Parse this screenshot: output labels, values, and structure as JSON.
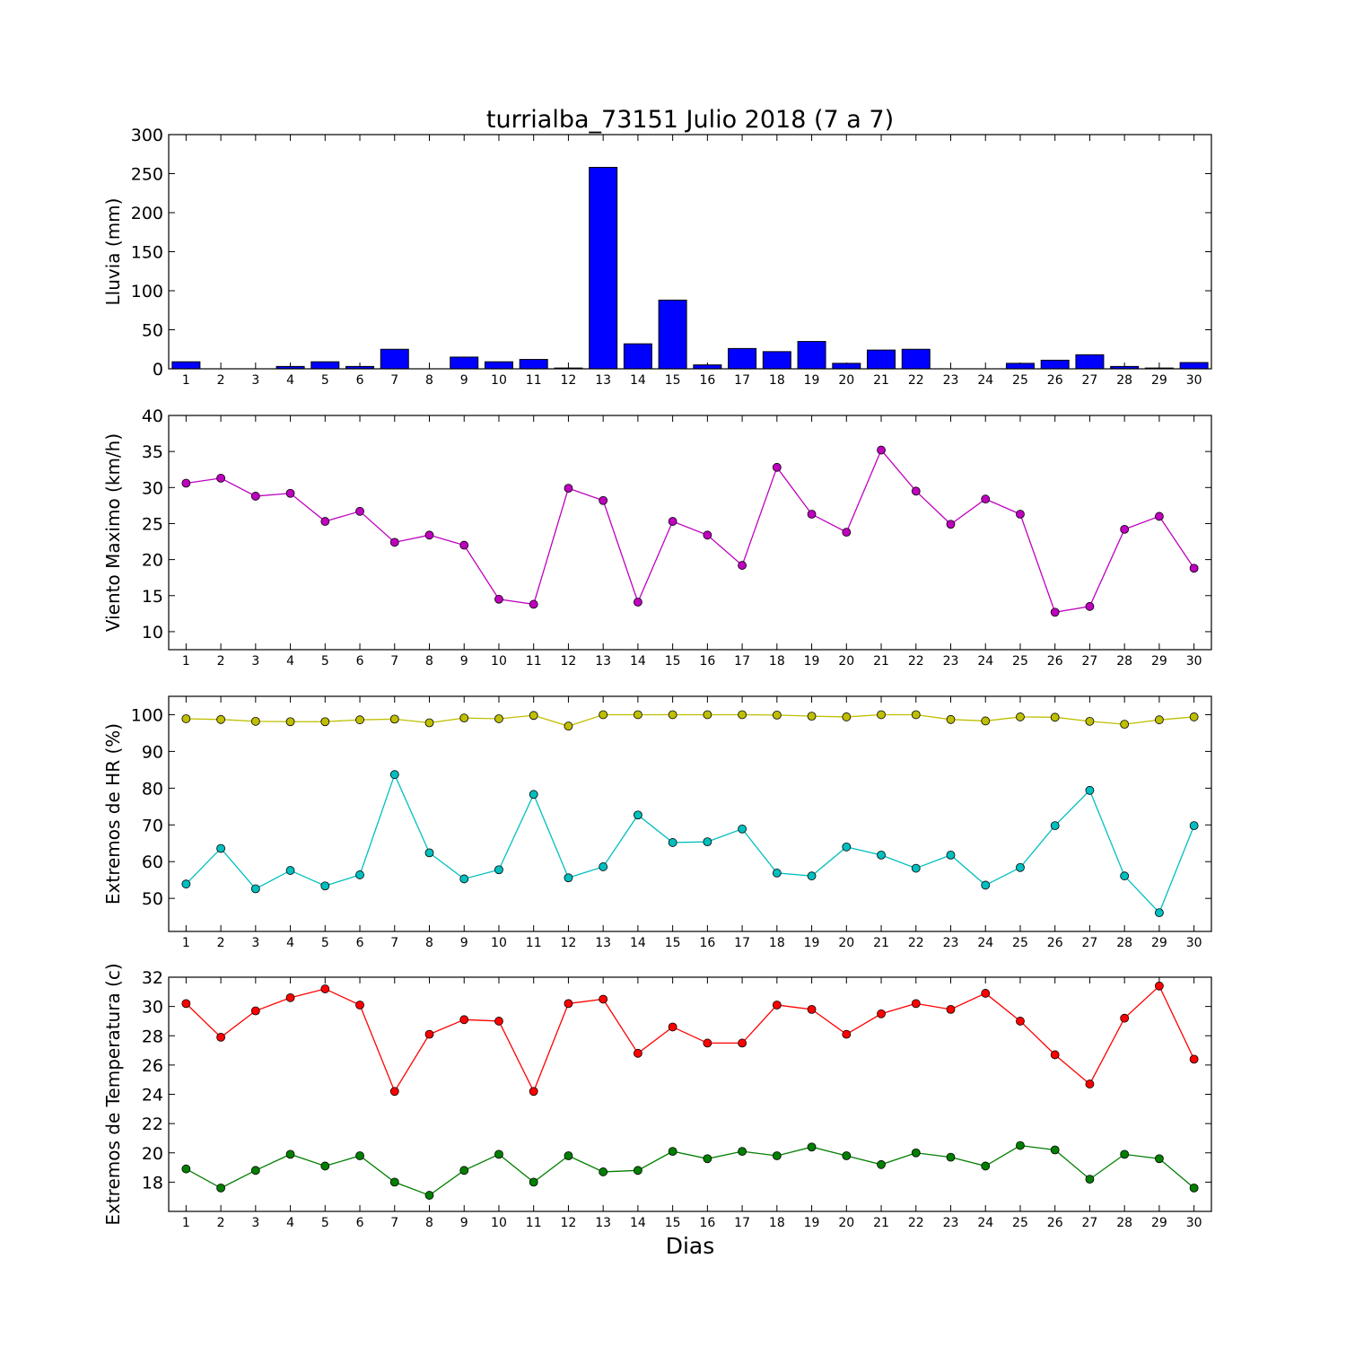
{
  "chart_data": {
    "title": "turrialba_73151 Julio 2018  (7 a 7)",
    "xlabel": "Dias",
    "categories": [
      "1",
      "2",
      "3",
      "4",
      "5",
      "6",
      "7",
      "8",
      "9",
      "10",
      "11",
      "12",
      "13",
      "14",
      "15",
      "16",
      "17",
      "18",
      "19",
      "20",
      "21",
      "22",
      "23",
      "24",
      "25",
      "26",
      "27",
      "28",
      "29",
      "30"
    ],
    "panels": [
      {
        "type": "bar",
        "ylabel": "Lluvia (mm)",
        "ylim": [
          0,
          300
        ],
        "yticks": [
          0,
          50,
          100,
          150,
          200,
          250,
          300
        ],
        "series": [
          {
            "color": "#0000ff",
            "values": [
              9,
              0,
              0,
              3,
              9,
              3,
              25,
              0,
              15,
              9,
              12,
              1,
              258,
              32,
              88,
              5,
              26,
              22,
              35,
              7,
              24,
              25,
              0,
              0,
              7,
              11,
              18,
              3,
              1,
              8
            ]
          }
        ]
      },
      {
        "type": "line",
        "ylabel": "Viento Maximo (km/h)",
        "ylim": [
          7.5,
          40
        ],
        "yticks": [
          10,
          15,
          20,
          25,
          30,
          35,
          40
        ],
        "series": [
          {
            "color": "#bf00bf",
            "values": [
              30.6,
              31.3,
              28.8,
              29.2,
              25.3,
              26.7,
              22.4,
              23.4,
              22.0,
              14.5,
              13.8,
              29.9,
              28.2,
              14.1,
              25.3,
              23.4,
              19.2,
              32.8,
              26.3,
              23.8,
              35.2,
              29.5,
              24.9,
              28.4,
              26.3,
              12.7,
              13.5,
              24.2,
              26.0,
              18.8
            ]
          }
        ]
      },
      {
        "type": "line",
        "ylabel": "Extremos de HR (%)",
        "ylim": [
          41,
          105
        ],
        "yticks": [
          50,
          60,
          70,
          80,
          90,
          100
        ],
        "series": [
          {
            "color": "#bfbf00",
            "values": [
              98.9,
              98.7,
              98.2,
              98.1,
              98.1,
              98.6,
              98.8,
              97.8,
              99.1,
              98.9,
              99.8,
              96.9,
              100,
              100,
              100,
              100,
              100,
              99.9,
              99.6,
              99.4,
              100,
              100,
              98.7,
              98.3,
              99.4,
              99.3,
              98.2,
              97.4,
              98.6,
              99.4
            ]
          },
          {
            "color": "#00bfbf",
            "values": [
              53.9,
              63.6,
              52.6,
              57.6,
              53.4,
              56.4,
              83.7,
              62.4,
              55.3,
              57.8,
              78.3,
              55.6,
              58.6,
              72.7,
              65.2,
              65.4,
              68.9,
              56.9,
              56.1,
              64.0,
              61.8,
              58.2,
              61.8,
              53.6,
              58.4,
              69.8,
              79.4,
              56.1,
              46.1,
              69.8
            ]
          }
        ]
      },
      {
        "type": "line",
        "ylabel": "Extremos de Temperatura (c)",
        "ylim": [
          16,
          32
        ],
        "yticks": [
          18,
          20,
          22,
          24,
          26,
          28,
          30,
          32
        ],
        "series": [
          {
            "color": "#ff0000",
            "values": [
              30.2,
              27.9,
              29.7,
              30.6,
              31.2,
              30.1,
              24.2,
              28.1,
              29.1,
              29.0,
              24.2,
              30.2,
              30.5,
              26.8,
              28.6,
              27.5,
              27.5,
              30.1,
              29.8,
              28.1,
              29.5,
              30.2,
              29.8,
              30.9,
              29.0,
              26.7,
              24.7,
              29.2,
              31.4,
              26.4
            ]
          },
          {
            "color": "#007f00",
            "values": [
              18.9,
              17.6,
              18.8,
              19.9,
              19.1,
              19.8,
              18.0,
              17.1,
              18.8,
              19.9,
              18.0,
              19.8,
              18.7,
              18.8,
              20.1,
              19.6,
              20.1,
              19.8,
              20.4,
              19.8,
              19.2,
              20.0,
              19.7,
              19.1,
              20.5,
              20.2,
              18.2,
              19.9,
              19.6,
              17.6
            ]
          }
        ]
      }
    ]
  }
}
